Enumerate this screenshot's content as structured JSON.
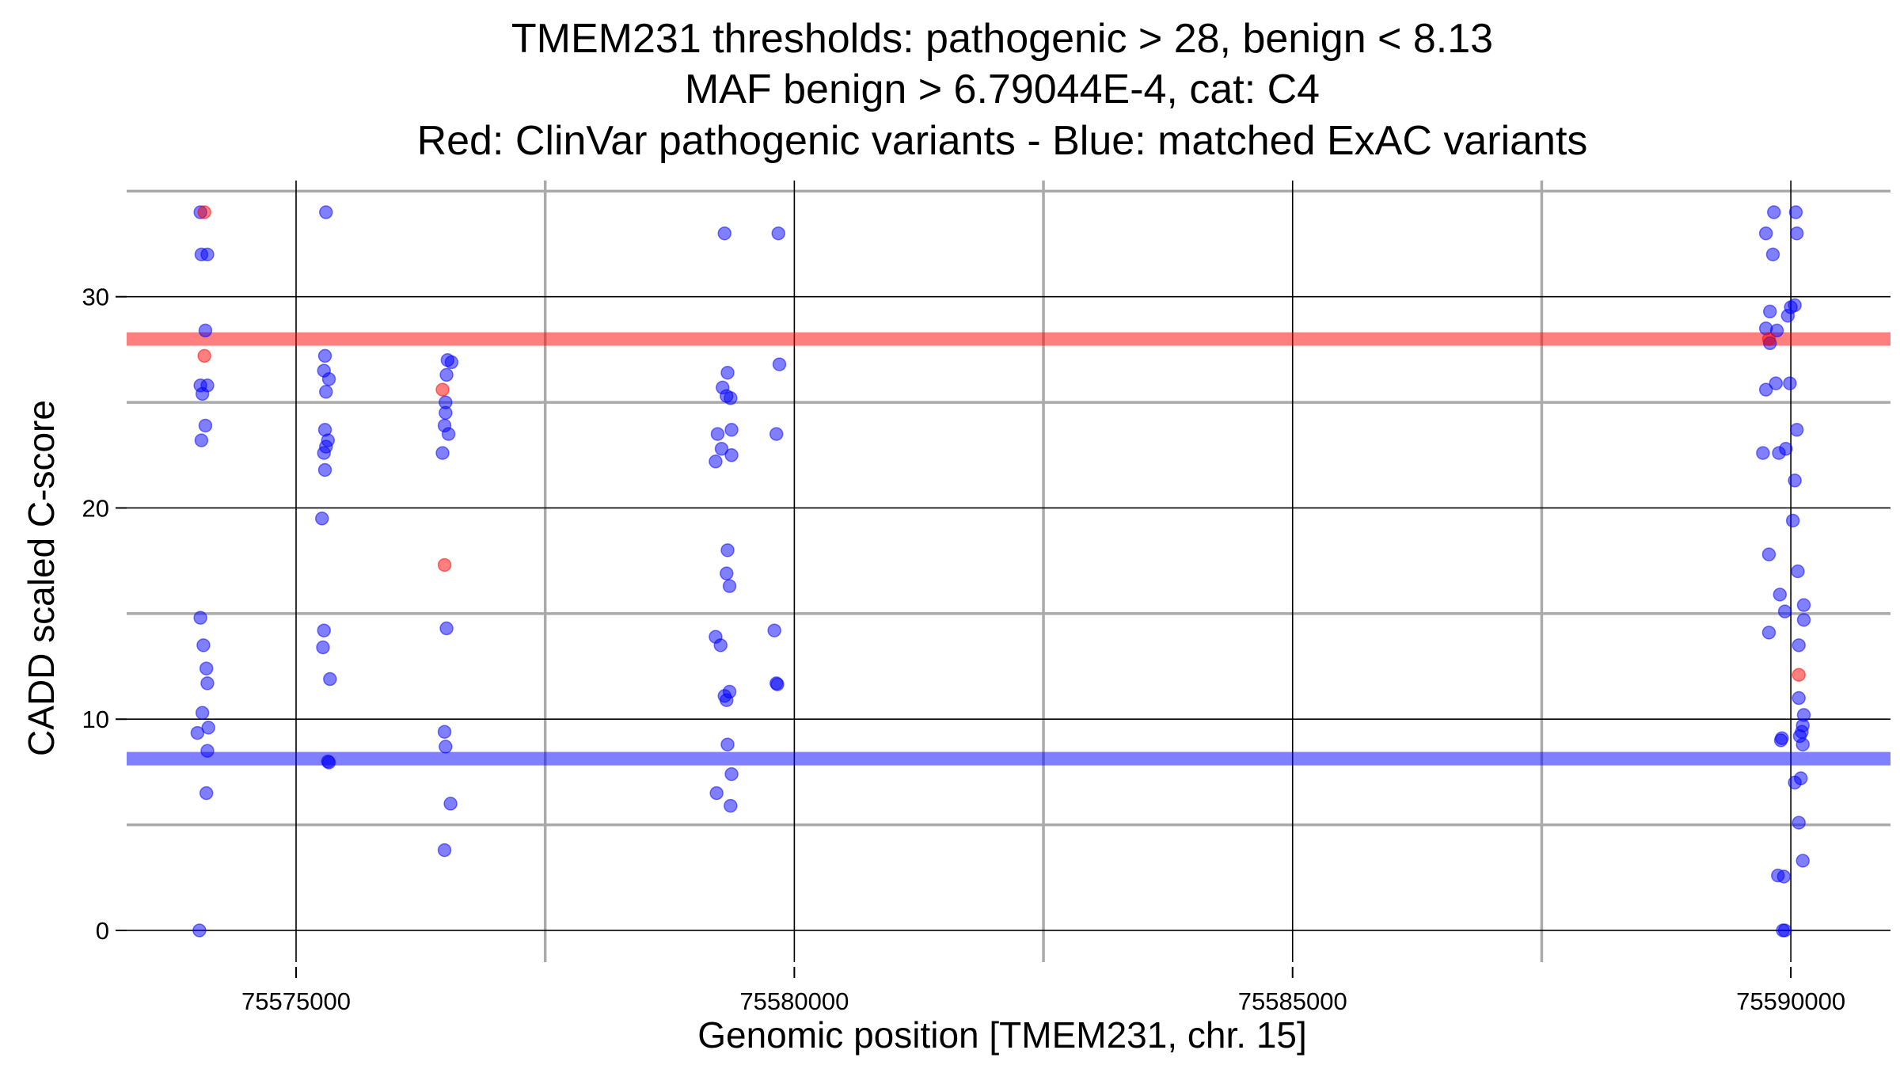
{
  "chart_data": {
    "type": "scatter",
    "title_lines": [
      "TMEM231 thresholds: pathogenic > 28, benign < 8.13",
      "MAF benign > 6.79044E-4, cat: C4",
      "Red: ClinVar pathogenic variants - Blue: matched ExAC variants"
    ],
    "xlabel": "Genomic position [TMEM231, chr. 15]",
    "ylabel": "CADD scaled C-score",
    "xlim": [
      75573300,
      75591000
    ],
    "ylim": [
      -1.5,
      35.5
    ],
    "x_ticks": [
      75575000,
      75580000,
      75585000,
      75590000
    ],
    "x_tick_labels": [
      "75575000",
      "75580000",
      "75585000",
      "75590000"
    ],
    "x_minor_gridlines": [
      75577500,
      75582500,
      75587500
    ],
    "y_ticks": [
      0,
      10,
      20,
      30
    ],
    "y_tick_labels": [
      "0",
      "10",
      "20",
      "30"
    ],
    "y_minor_gridlines": [
      5,
      15,
      25,
      35
    ],
    "grid": true,
    "thresholds": [
      {
        "name": "pathogenic",
        "y": 28,
        "color": "#ff0000"
      },
      {
        "name": "benign",
        "y": 8.13,
        "color": "#0000ff"
      }
    ],
    "series": [
      {
        "color": "#0000ff",
        "points": [
          [
            75574040,
            34
          ],
          [
            75574050,
            32
          ],
          [
            75574110,
            32
          ],
          [
            75574090,
            28.4
          ],
          [
            75574040,
            25.8
          ],
          [
            75574060,
            25.4
          ],
          [
            75574110,
            25.8
          ],
          [
            75574090,
            23.9
          ],
          [
            75574050,
            23.2
          ],
          [
            75574040,
            14.8
          ],
          [
            75574070,
            13.5
          ],
          [
            75574100,
            12.4
          ],
          [
            75574110,
            11.7
          ],
          [
            75574060,
            10.3
          ],
          [
            75574120,
            9.6
          ],
          [
            75574010,
            9.35
          ],
          [
            75574110,
            8.5
          ],
          [
            75574100,
            6.5
          ],
          [
            75574030,
            0
          ],
          [
            75575300,
            34
          ],
          [
            75575290,
            27.2
          ],
          [
            75575280,
            26.5
          ],
          [
            75575330,
            26.1
          ],
          [
            75575300,
            25.5
          ],
          [
            75575290,
            23.7
          ],
          [
            75575320,
            23.2
          ],
          [
            75575300,
            22.9
          ],
          [
            75575280,
            22.6
          ],
          [
            75575290,
            21.8
          ],
          [
            75575260,
            19.5
          ],
          [
            75575280,
            14.2
          ],
          [
            75575270,
            13.4
          ],
          [
            75575340,
            11.9
          ],
          [
            75575320,
            8.0
          ],
          [
            75575330,
            7.95
          ],
          [
            75576520,
            27
          ],
          [
            75576560,
            26.9
          ],
          [
            75576510,
            26.3
          ],
          [
            75576500,
            25
          ],
          [
            75576500,
            24.5
          ],
          [
            75576490,
            23.9
          ],
          [
            75576530,
            23.5
          ],
          [
            75576470,
            22.6
          ],
          [
            75576510,
            14.3
          ],
          [
            75576490,
            9.4
          ],
          [
            75576500,
            8.7
          ],
          [
            75576550,
            6.0
          ],
          [
            75576490,
            3.8
          ],
          [
            75579300,
            33
          ],
          [
            75579330,
            26.4
          ],
          [
            75579280,
            25.7
          ],
          [
            75579320,
            25.3
          ],
          [
            75579360,
            25.2
          ],
          [
            75579370,
            23.7
          ],
          [
            75579230,
            23.5
          ],
          [
            75579270,
            22.8
          ],
          [
            75579370,
            22.5
          ],
          [
            75579210,
            22.2
          ],
          [
            75579330,
            18
          ],
          [
            75579320,
            16.9
          ],
          [
            75579350,
            16.3
          ],
          [
            75579210,
            13.9
          ],
          [
            75579260,
            13.5
          ],
          [
            75579300,
            11.1
          ],
          [
            75579350,
            11.3
          ],
          [
            75579320,
            10.9
          ],
          [
            75579330,
            8.8
          ],
          [
            75579370,
            7.4
          ],
          [
            75579220,
            6.5
          ],
          [
            75579360,
            5.9
          ],
          [
            75579840,
            33
          ],
          [
            75579850,
            26.8
          ],
          [
            75579820,
            23.5
          ],
          [
            75579800,
            14.2
          ],
          [
            75579820,
            11.7
          ],
          [
            75579830,
            11.65
          ],
          [
            75589750,
            33
          ],
          [
            75589830,
            34
          ],
          [
            75589820,
            32
          ],
          [
            75590050,
            34
          ],
          [
            75590060,
            33
          ],
          [
            75590000,
            29.5
          ],
          [
            75590040,
            29.6
          ],
          [
            75589970,
            29.1
          ],
          [
            75589790,
            29.3
          ],
          [
            75589750,
            28.5
          ],
          [
            75589860,
            28.4
          ],
          [
            75589790,
            27.8
          ],
          [
            75589750,
            25.6
          ],
          [
            75589850,
            25.9
          ],
          [
            75589990,
            25.9
          ],
          [
            75590060,
            23.7
          ],
          [
            75589950,
            22.8
          ],
          [
            75589880,
            22.6
          ],
          [
            75589720,
            22.6
          ],
          [
            75590040,
            21.3
          ],
          [
            75590020,
            19.4
          ],
          [
            75589780,
            17.8
          ],
          [
            75590070,
            17
          ],
          [
            75589890,
            15.9
          ],
          [
            75590130,
            15.4
          ],
          [
            75589940,
            15.1
          ],
          [
            75590130,
            14.7
          ],
          [
            75589780,
            14.1
          ],
          [
            75590080,
            13.5
          ],
          [
            75590080,
            11
          ],
          [
            75590130,
            10.2
          ],
          [
            75590120,
            9.7
          ],
          [
            75590090,
            9.2
          ],
          [
            75590110,
            9.4
          ],
          [
            75589900,
            9.0
          ],
          [
            75589910,
            9.1
          ],
          [
            75590120,
            8.8
          ],
          [
            75590040,
            7.0
          ],
          [
            75590100,
            7.2
          ],
          [
            75590080,
            5.1
          ],
          [
            75590120,
            3.3
          ],
          [
            75589870,
            2.6
          ],
          [
            75589930,
            2.55
          ],
          [
            75589920,
            0
          ],
          [
            75589940,
            0
          ]
        ]
      },
      {
        "color": "#ff0000",
        "points": [
          [
            75574080,
            34
          ],
          [
            75574080,
            27.2
          ],
          [
            75576470,
            25.6
          ],
          [
            75576490,
            17.3
          ],
          [
            75589780,
            28
          ],
          [
            75590080,
            12.1
          ]
        ]
      }
    ]
  }
}
